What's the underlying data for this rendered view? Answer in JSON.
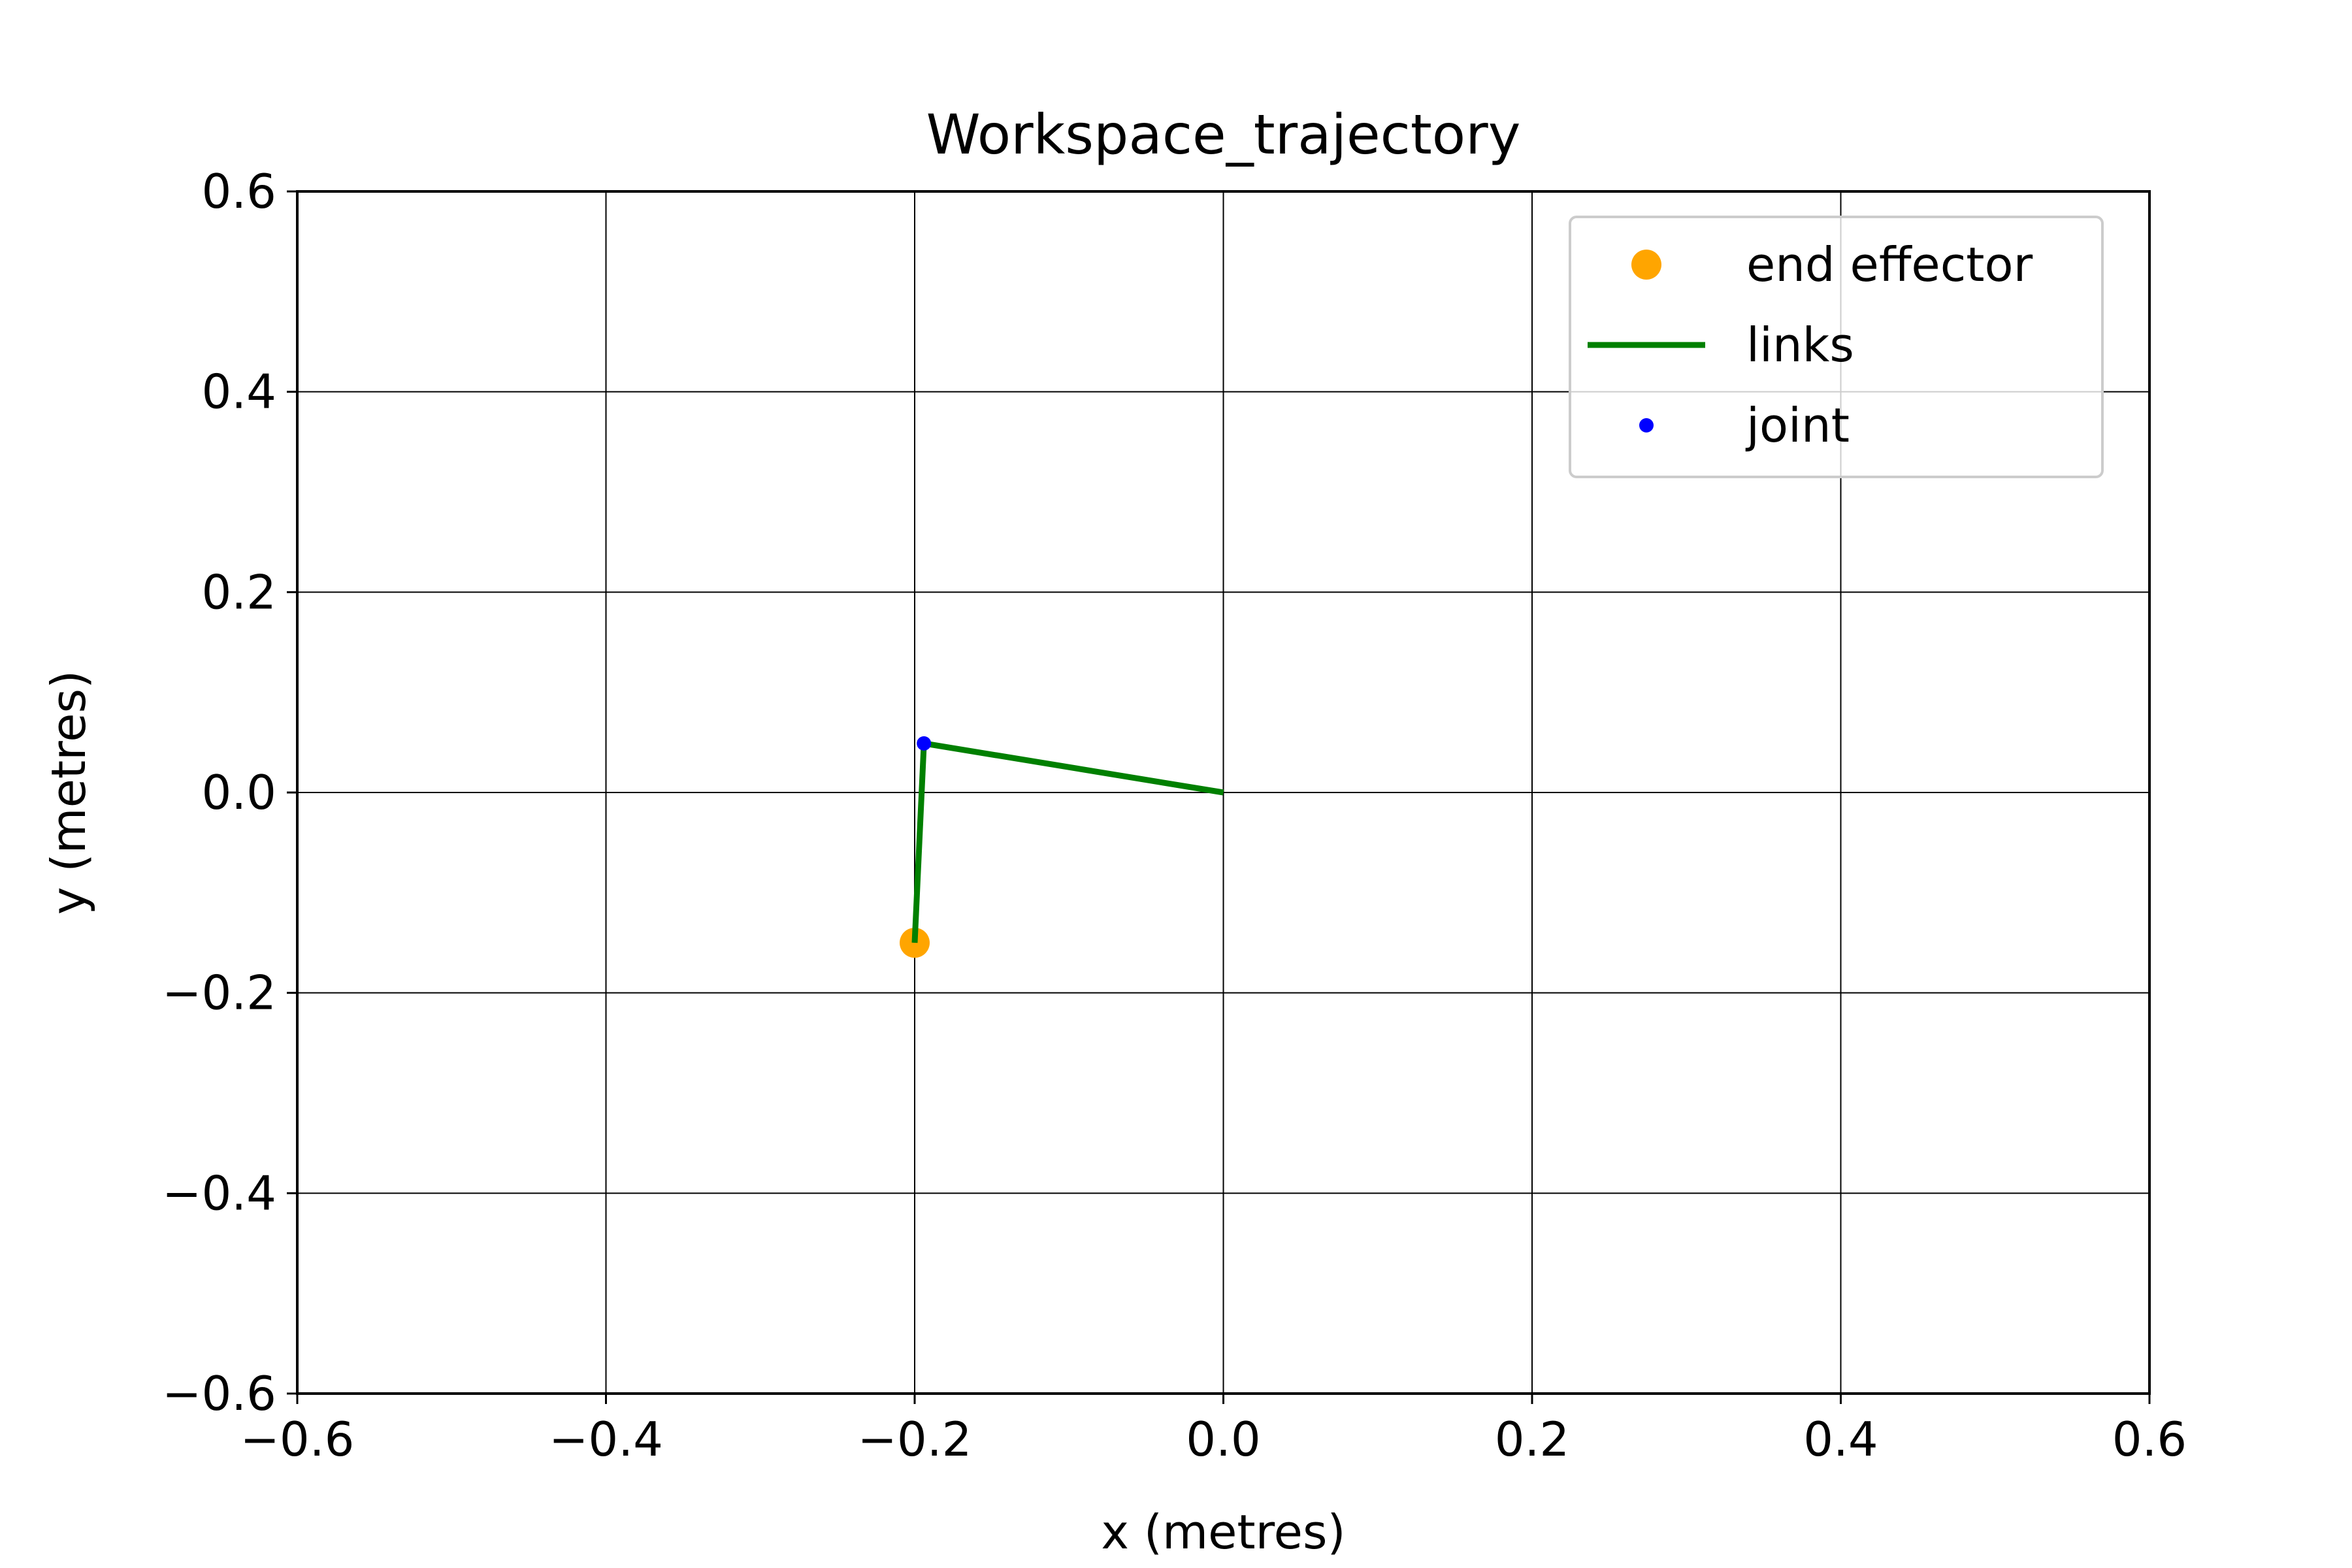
{
  "chart_data": {
    "type": "line",
    "title": "Workspace_trajectory",
    "xlabel": "x (metres)",
    "ylabel": "y (metres)",
    "xlim": [
      -0.6,
      0.6
    ],
    "ylim": [
      -0.6,
      0.6
    ],
    "xticks": [
      -0.6,
      -0.4,
      -0.2,
      0.0,
      0.2,
      0.4,
      0.6
    ],
    "yticks": [
      -0.6,
      -0.4,
      -0.2,
      0.0,
      0.2,
      0.4,
      0.6
    ],
    "xtick_labels": [
      "−0.6",
      "−0.4",
      "−0.2",
      "0.0",
      "0.2",
      "0.4",
      "0.6"
    ],
    "ytick_labels": [
      "−0.6",
      "−0.4",
      "−0.2",
      "0.0",
      "0.2",
      "0.4",
      "0.6"
    ],
    "grid": true,
    "legend_position": "top-right",
    "series": [
      {
        "name": "end effector",
        "kind": "marker",
        "color": "#ffa500",
        "points": [
          {
            "x": -0.2,
            "y": -0.15
          }
        ]
      },
      {
        "name": "links",
        "kind": "line",
        "color": "#008000",
        "points": [
          {
            "x": 0.0,
            "y": 0.0
          },
          {
            "x": -0.194,
            "y": 0.049
          },
          {
            "x": -0.2,
            "y": -0.15
          }
        ]
      },
      {
        "name": "joint",
        "kind": "small-marker",
        "color": "#0000ff",
        "points": [
          {
            "x": -0.194,
            "y": 0.049
          }
        ]
      }
    ]
  }
}
